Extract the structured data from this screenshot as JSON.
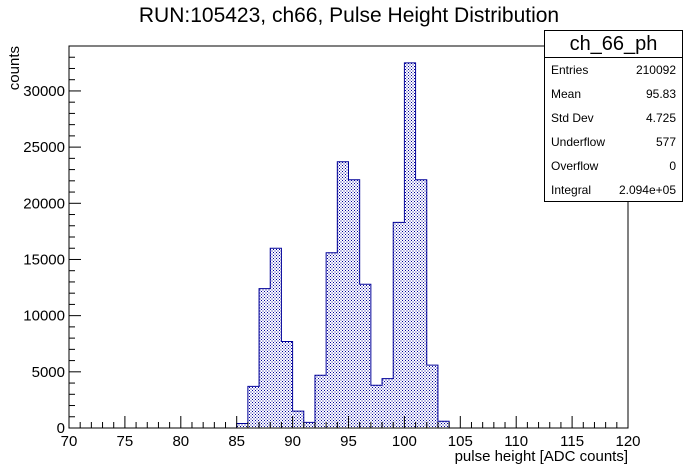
{
  "chart_data": {
    "type": "bar",
    "title": "RUN:105423, ch66, Pulse Height Distribution",
    "xlabel": "pulse height [ADC counts]",
    "ylabel": "counts",
    "xlim": [
      70,
      120
    ],
    "ylim": [
      0,
      34000
    ],
    "x_ticks": [
      70,
      75,
      80,
      85,
      90,
      95,
      100,
      105,
      110,
      115,
      120
    ],
    "y_ticks": [
      0,
      5000,
      10000,
      15000,
      20000,
      25000,
      30000
    ],
    "bin_width": 1,
    "bin_edges_start": [
      85,
      86,
      87,
      88,
      89,
      90,
      91,
      92,
      93,
      94,
      95,
      96,
      97,
      98,
      99,
      100,
      101,
      102,
      103
    ],
    "values": [
      400,
      3700,
      12400,
      16000,
      7700,
      1500,
      500,
      4700,
      15600,
      23700,
      22100,
      12800,
      3800,
      4400,
      18300,
      32500,
      22100,
      5600,
      600
    ],
    "line_color": "#000099",
    "fill_color": "#000099",
    "stats_box": {
      "name": "ch_66_ph",
      "rows": [
        {
          "label": "Entries",
          "value": "210092"
        },
        {
          "label": "Mean",
          "value": "95.83"
        },
        {
          "label": "Std Dev",
          "value": "4.725"
        },
        {
          "label": "Underflow",
          "value": "577"
        },
        {
          "label": "Overflow",
          "value": "0"
        },
        {
          "label": "Integral",
          "value": "2.094e+05"
        }
      ]
    }
  }
}
